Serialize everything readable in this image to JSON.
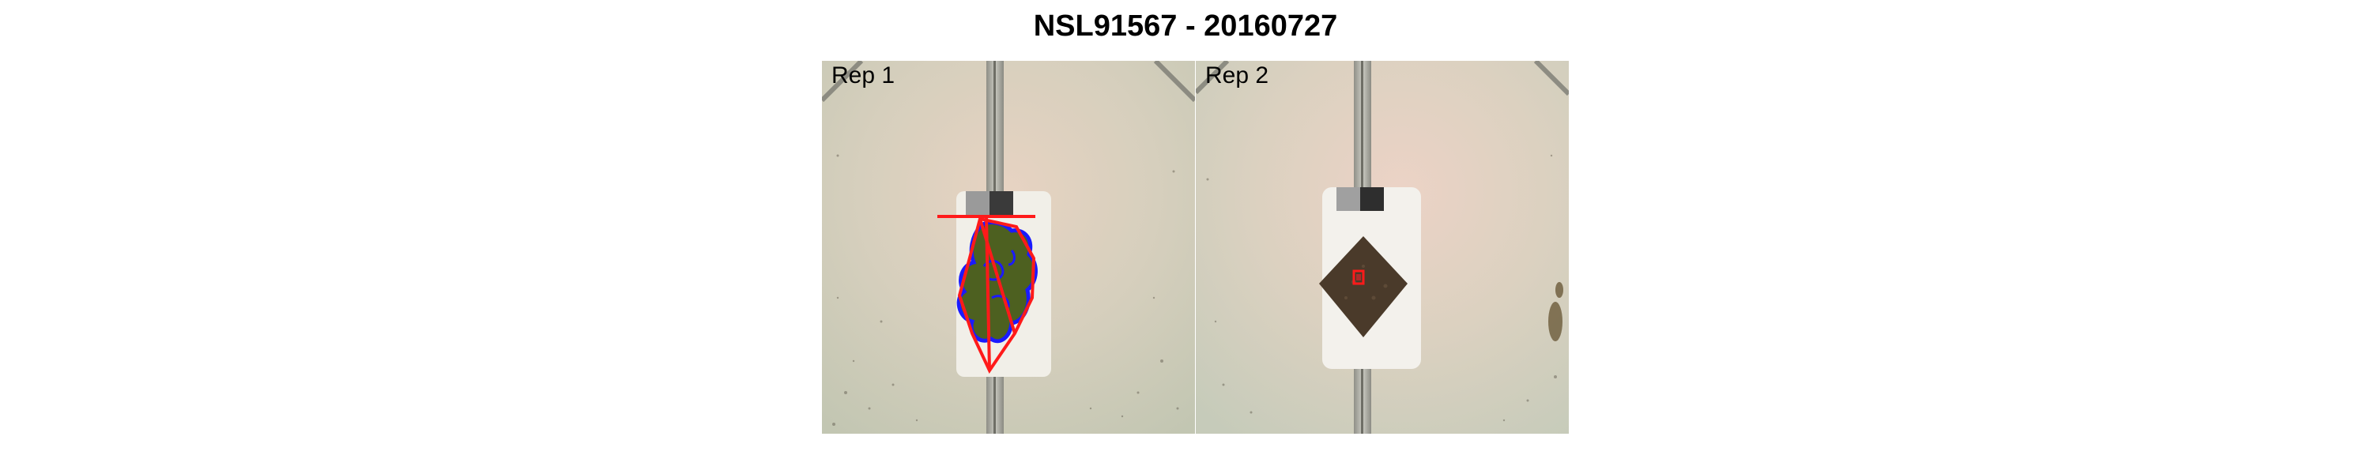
{
  "figure": {
    "title": "NSL91567 - 20160727"
  },
  "panels": [
    {
      "label": "Rep 1",
      "has_plant": true,
      "has_segmentation_overlay": true
    },
    {
      "label": "Rep 2",
      "has_plant": true,
      "has_segmentation_overlay": false
    }
  ],
  "colors": {
    "convex_hull": "#ff1a1a",
    "plant_contour": "#1a1aff",
    "plant_fill": "#4d6020",
    "background_soil": "#cfcbb8"
  }
}
